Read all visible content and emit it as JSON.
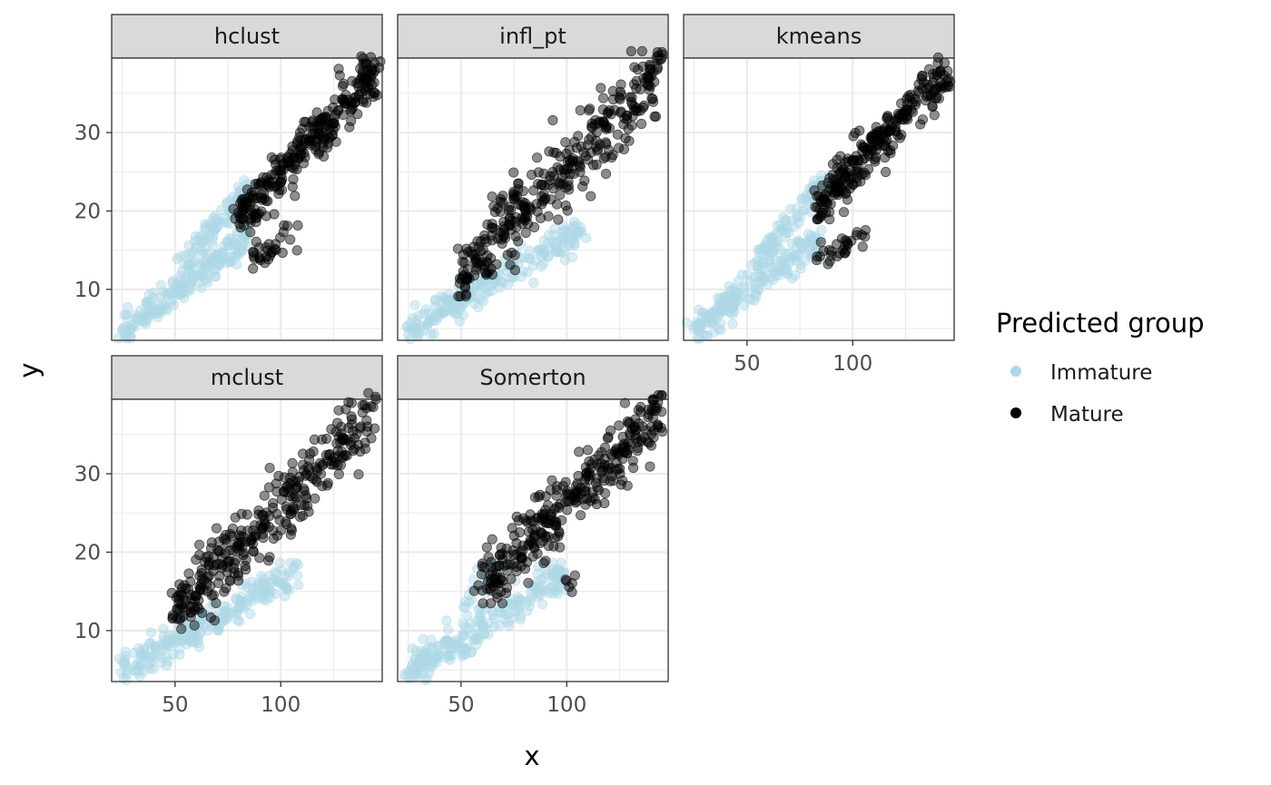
{
  "chart_data": {
    "type": "scatter",
    "facet_layout": "wrap, 3 columns, 2 rows",
    "xlabel": "x",
    "ylabel": "y",
    "xlim": [
      20,
      148
    ],
    "ylim": [
      3.5,
      39.5
    ],
    "x_ticks": [
      50,
      100
    ],
    "y_ticks": [
      10,
      20,
      30
    ],
    "point_alpha": 0.45,
    "legend": {
      "title": "Predicted group",
      "placement": "right",
      "entries": [
        {
          "name": "Immature",
          "color": "#add8e6"
        },
        {
          "name": "Mature",
          "color": "#000000"
        }
      ]
    },
    "panels": [
      {
        "label": "hclust",
        "series": [
          {
            "name": "Immature",
            "color": "#add8e6",
            "clusters": [
              {
                "x_range": [
                  25,
                  85
                ],
                "y_range": [
                  4.8,
                  16.5
                ],
                "n": 200,
                "note": "lower band"
              },
              {
                "x_range": [
                  55,
                  85
                ],
                "y_range": [
                  14,
                  23
                ],
                "n": 80,
                "note": "upper band"
              }
            ]
          },
          {
            "name": "Mature",
            "color": "#000000",
            "clusters": [
              {
                "x_range": [
                  80,
                  145
                ],
                "y_range": [
                  19,
                  38
                ],
                "n": 280,
                "note": "upper band"
              },
              {
                "x_range": [
                  85,
                  107
                ],
                "y_range": [
                  13.5,
                  17.5
                ],
                "n": 30,
                "note": "lower band"
              }
            ]
          }
        ]
      },
      {
        "label": "infl_pt",
        "series": [
          {
            "name": "Immature",
            "color": "#add8e6",
            "clusters": [
              {
                "x_range": [
                  25,
                  107
                ],
                "y_range": [
                  4.8,
                  17.5
                ],
                "n": 220,
                "note": "lower band"
              }
            ]
          },
          {
            "name": "Mature",
            "color": "#000000",
            "clusters": [
              {
                "x_range": [
                  50,
                  145
                ],
                "y_range": [
                  11.5,
                  38
                ],
                "n": 340,
                "note": "upper band"
              }
            ]
          }
        ]
      },
      {
        "label": "kmeans",
        "series": [
          {
            "name": "Immature",
            "color": "#add8e6",
            "clusters": [
              {
                "x_range": [
                  25,
                  85
                ],
                "y_range": [
                  4.8,
                  16.5
                ],
                "n": 200,
                "note": "lower band"
              },
              {
                "x_range": [
                  55,
                  88
                ],
                "y_range": [
                  14,
                  24.5
                ],
                "n": 90,
                "note": "upper band"
              }
            ]
          },
          {
            "name": "Mature",
            "color": "#000000",
            "clusters": [
              {
                "x_range": [
                  83,
                  145
                ],
                "y_range": [
                  20.5,
                  38
                ],
                "n": 260,
                "note": "upper band"
              },
              {
                "x_range": [
                  85,
                  107
                ],
                "y_range": [
                  13.5,
                  17.5
                ],
                "n": 30,
                "note": "lower band"
              }
            ]
          }
        ]
      },
      {
        "label": "mclust",
        "series": [
          {
            "name": "Immature",
            "color": "#add8e6",
            "clusters": [
              {
                "x_range": [
                  25,
                  107
                ],
                "y_range": [
                  4.8,
                  17.5
                ],
                "n": 230,
                "note": "lower band"
              }
            ]
          },
          {
            "name": "Mature",
            "color": "#000000",
            "clusters": [
              {
                "x_range": [
                  50,
                  145
                ],
                "y_range": [
                  12.5,
                  38
                ],
                "n": 330,
                "note": "upper band"
              }
            ]
          }
        ]
      },
      {
        "label": "Somerton",
        "series": [
          {
            "name": "Immature",
            "color": "#add8e6",
            "clusters": [
              {
                "x_range": [
                  25,
                  100
                ],
                "y_range": [
                  4.8,
                  17.5
                ],
                "n": 220,
                "note": "lower band"
              },
              {
                "x_range": [
                  50,
                  68
                ],
                "y_range": [
                  13.5,
                  18
                ],
                "n": 25,
                "note": "upper band start"
              }
            ]
          },
          {
            "name": "Mature",
            "color": "#000000",
            "clusters": [
              {
                "x_range": [
                  60,
                  145
                ],
                "y_range": [
                  15.5,
                  38
                ],
                "n": 320,
                "note": "upper band"
              },
              {
                "x_range": [
                  100,
                  104
                ],
                "y_range": [
                  15,
                  17.5
                ],
                "n": 6,
                "note": "lower band"
              }
            ]
          }
        ]
      }
    ]
  }
}
